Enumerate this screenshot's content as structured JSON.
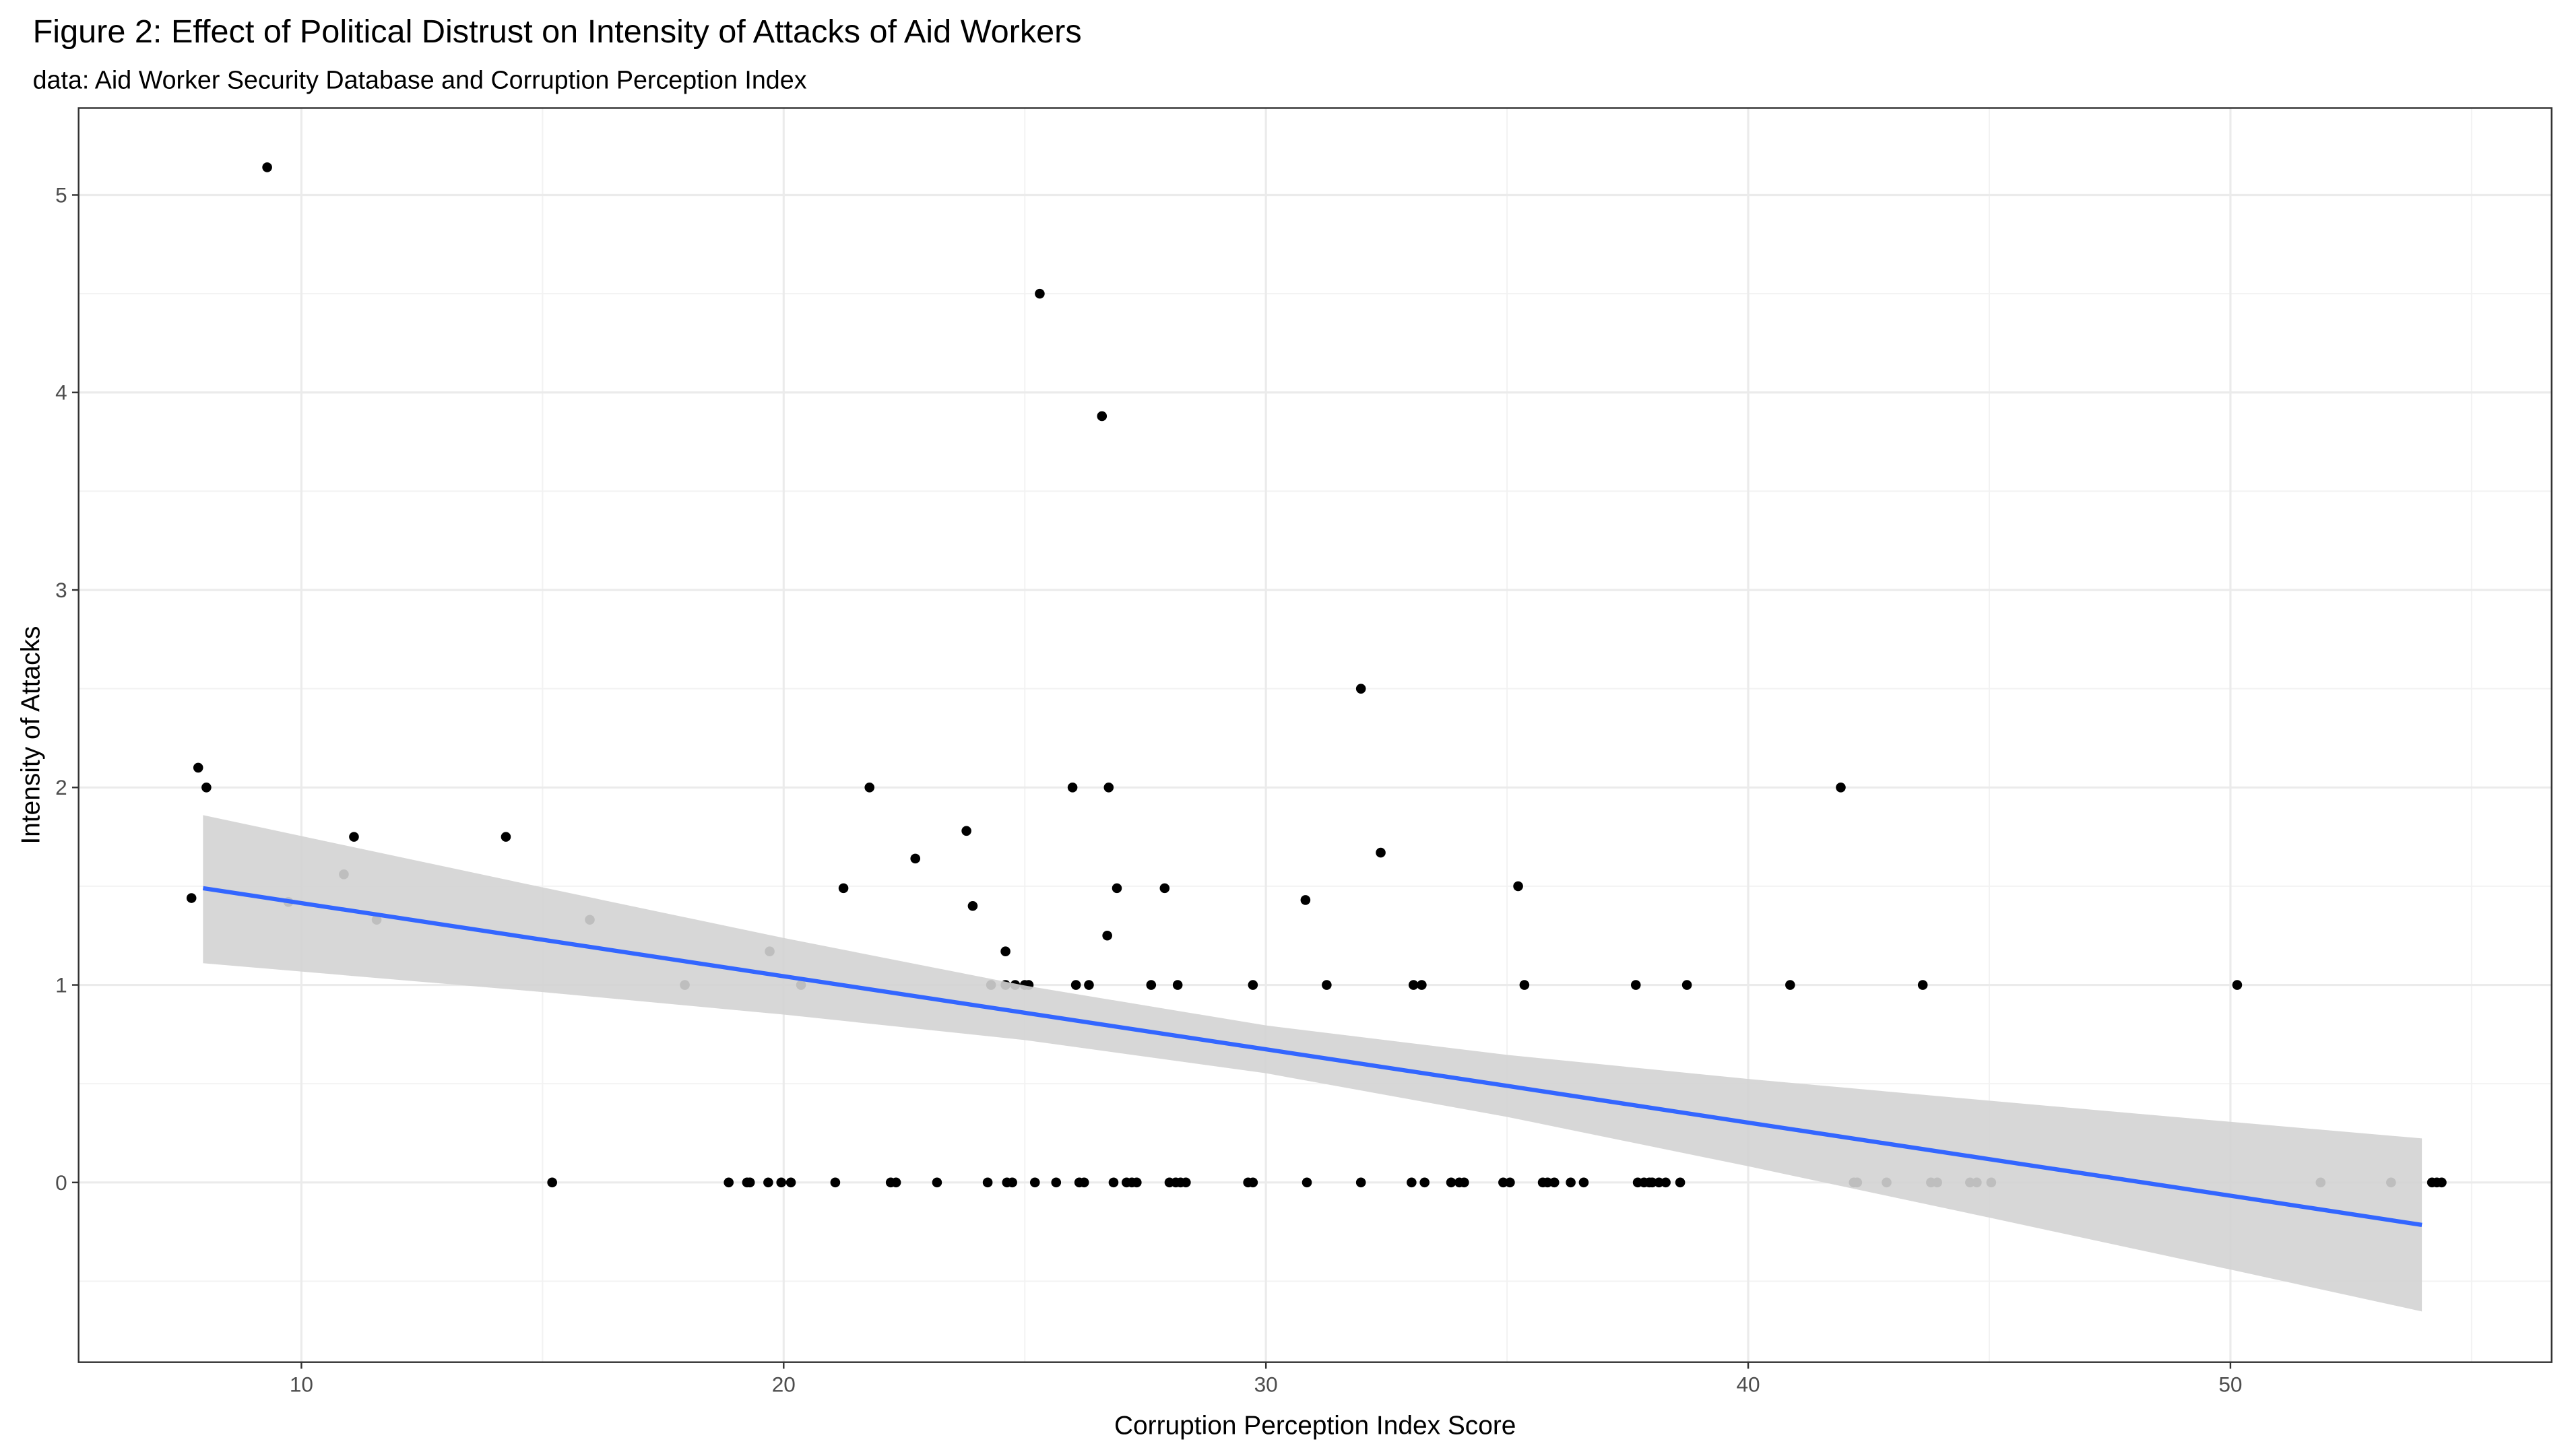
{
  "chart_data": {
    "type": "scatter",
    "title": "Figure 2: Effect of Political Distrust on Intensity of Attacks of Aid Workers",
    "subtitle": "data: Aid Worker Security Database and Corruption Perception Index",
    "x_label": "Corruption Perception Index Score",
    "y_label": "Intensity of Attacks",
    "color": "#000000",
    "x": [
      7.72,
      7.86,
      8.03,
      9.29,
      9.73,
      10.88,
      11.09,
      11.56,
      14.24,
      15.2,
      15.98,
      17.95,
      18.86,
      19.24,
      19.3,
      19.68,
      19.71,
      19.95,
      20.15,
      20.36,
      21.07,
      21.24,
      21.78,
      22.22,
      22.33,
      22.73,
      23.18,
      23.79,
      23.92,
      24.23,
      24.3,
      24.6,
      24.6,
      24.63,
      24.74,
      24.8,
      25.0,
      25.08,
      25.21,
      25.31,
      25.65,
      25.99,
      26.06,
      26.13,
      26.23,
      26.33,
      26.6,
      26.71,
      26.74,
      26.84,
      26.91,
      27.11,
      27.22,
      27.32,
      27.62,
      27.9,
      28.0,
      28.13,
      28.17,
      28.23,
      28.34,
      29.63,
      29.73,
      29.73,
      30.82,
      30.85,
      31.26,
      31.97,
      31.97,
      32.38,
      33.02,
      33.06,
      33.23,
      33.29,
      33.84,
      34.01,
      34.11,
      34.92,
      35.06,
      35.23,
      35.36,
      35.74,
      35.84,
      35.98,
      36.32,
      36.59,
      37.67,
      37.71,
      37.84,
      37.95,
      38.01,
      38.15,
      38.29,
      38.59,
      38.73,
      40.87,
      41.92,
      42.19,
      42.26,
      42.87,
      43.62,
      43.79,
      43.92,
      44.6,
      44.74,
      45.04,
      50.14,
      51.87,
      53.33,
      54.18,
      54.28,
      54.38
    ],
    "values": [
      1.44,
      2.1,
      2.0,
      5.14,
      1.42,
      1.56,
      1.75,
      1.33,
      1.75,
      0,
      1.33,
      1.0,
      0,
      0,
      0,
      0,
      1.17,
      0,
      0,
      1.0,
      0,
      1.49,
      2.0,
      0,
      0,
      1.64,
      0,
      1.78,
      1.4,
      0,
      1.0,
      1.17,
      1.0,
      0,
      0,
      1.0,
      1.0,
      1.0,
      0,
      4.5,
      0,
      2.0,
      1.0,
      0,
      0,
      1.0,
      3.88,
      1.25,
      2.0,
      0,
      1.49,
      0,
      0,
      0,
      1.0,
      1.49,
      0,
      0,
      1.0,
      0,
      0,
      0,
      0,
      1.0,
      1.43,
      0,
      1.0,
      2.5,
      0,
      1.67,
      0,
      1.0,
      1.0,
      0,
      0,
      0,
      0,
      0,
      0,
      1.5,
      1.0,
      0,
      0,
      0,
      0,
      0,
      1.0,
      0,
      0,
      0,
      0,
      0,
      0,
      0,
      1.0,
      1.0,
      2.0,
      0,
      0,
      0,
      1.0,
      0,
      0,
      0,
      0,
      0,
      1.0,
      0,
      0,
      0,
      0,
      0
    ],
    "fit": {
      "color": "#3366ff",
      "band_color": "#d3d3d3",
      "x": [
        7.96,
        15,
        20,
        25,
        30,
        35,
        40,
        45,
        50,
        53.97
      ],
      "values": [
        1.49,
        1.229,
        1.044,
        0.859,
        0.674,
        0.489,
        0.303,
        0.118,
        -0.067,
        -0.215
      ],
      "upper": [
        1.86,
        1.494,
        1.238,
        0.997,
        0.795,
        0.646,
        0.524,
        0.414,
        0.307,
        0.223
      ],
      "lower": [
        1.11,
        0.964,
        0.85,
        0.721,
        0.553,
        0.332,
        0.082,
        -0.178,
        -0.441,
        -0.653
      ]
    },
    "xlim": [
      5.38,
      56.66
    ],
    "ylim": [
      -0.91,
      5.44
    ],
    "xticks": [
      10,
      20,
      30,
      40,
      50
    ],
    "yticks": [
      0,
      1,
      2,
      3,
      4,
      5
    ],
    "xminor": [
      15,
      25,
      35,
      45,
      55
    ],
    "yminor": [
      -0.5,
      0.5,
      1.5,
      2.5,
      3.5,
      4.5
    ],
    "grid": true
  }
}
